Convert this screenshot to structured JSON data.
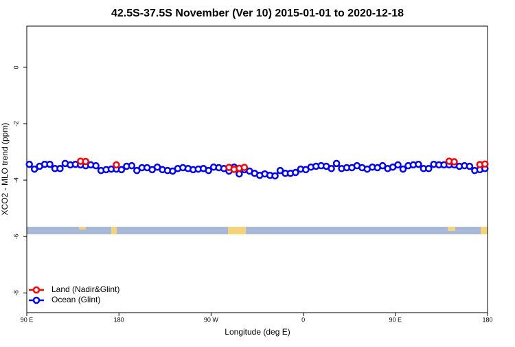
{
  "chart_data": {
    "type": "line",
    "title": "42.5S-37.5S November (Ver 10)   2015-01-01 to 2020-12-18",
    "x_label": "Longitude (deg E)",
    "y_label": "XCO2 - MLO trend (ppm)",
    "xlim": [
      90,
      540
    ],
    "ylim": [
      -8.7,
      1.46
    ],
    "xticks": [
      {
        "value": 90,
        "label": "90 E"
      },
      {
        "value": 180,
        "label": "180"
      },
      {
        "value": 270,
        "label": "90 W"
      },
      {
        "value": 360,
        "label": "0"
      },
      {
        "value": 450,
        "label": "90 E"
      },
      {
        "value": 540,
        "label": "180"
      }
    ],
    "yticks": [
      0,
      -2,
      -4,
      -6,
      -8
    ],
    "legend": "bottom-left",
    "x": [
      92.5,
      97.5,
      102.5,
      107.5,
      112.5,
      117.5,
      122.5,
      127.5,
      132.5,
      137.5,
      142.5,
      147.5,
      152.5,
      157.5,
      162.5,
      167.5,
      172.5,
      177.5,
      182.5,
      187.5,
      192.5,
      197.5,
      202.5,
      207.5,
      212.5,
      217.5,
      222.5,
      227.5,
      232.5,
      237.5,
      242.5,
      247.5,
      252.5,
      257.5,
      262.5,
      267.5,
      272.5,
      277.5,
      282.5,
      287.5,
      292.5,
      297.5,
      302.5,
      307.5,
      312.5,
      317.5,
      322.5,
      327.5,
      332.5,
      337.5,
      342.5,
      347.5,
      352.5,
      357.5,
      362.5,
      367.5,
      372.5,
      377.5,
      382.5,
      387.5,
      392.5,
      397.5,
      402.5,
      407.5,
      412.5,
      417.5,
      422.5,
      427.5,
      432.5,
      437.5,
      442.5,
      447.5,
      452.5,
      457.5,
      462.5,
      467.5,
      472.5,
      477.5,
      482.5,
      487.5,
      492.5,
      497.5,
      502.5,
      507.5,
      512.5,
      517.5,
      522.5,
      527.5,
      532.5,
      537.5
    ],
    "series": [
      {
        "name": "Land (Nadir&Glint)",
        "color": "#ff0000",
        "values": [
          null,
          null,
          null,
          null,
          null,
          null,
          null,
          null,
          null,
          null,
          -3.33,
          -3.34,
          null,
          null,
          null,
          null,
          null,
          -3.46,
          null,
          null,
          null,
          null,
          null,
          null,
          null,
          null,
          null,
          null,
          null,
          null,
          null,
          null,
          null,
          null,
          null,
          null,
          null,
          null,
          null,
          -3.55,
          -3.62,
          -3.58,
          -3.55,
          null,
          null,
          null,
          null,
          null,
          null,
          null,
          null,
          null,
          null,
          null,
          null,
          null,
          null,
          null,
          null,
          null,
          null,
          null,
          null,
          null,
          null,
          null,
          null,
          null,
          null,
          null,
          null,
          null,
          null,
          null,
          null,
          null,
          null,
          null,
          null,
          null,
          null,
          null,
          -3.33,
          -3.35,
          null,
          null,
          null,
          null,
          -3.45,
          -3.43
        ]
      },
      {
        "name": "Ocean (Glint)",
        "color": "#0000ff",
        "values": [
          -3.44,
          -3.61,
          -3.51,
          -3.44,
          -3.44,
          -3.59,
          -3.59,
          -3.41,
          -3.46,
          -3.44,
          -3.46,
          -3.49,
          -3.46,
          -3.49,
          -3.66,
          -3.63,
          -3.61,
          -3.61,
          -3.63,
          -3.51,
          -3.49,
          -3.66,
          -3.56,
          -3.56,
          -3.63,
          -3.54,
          -3.63,
          -3.66,
          -3.68,
          -3.59,
          -3.56,
          -3.59,
          -3.63,
          -3.61,
          -3.59,
          -3.66,
          -3.54,
          -3.56,
          -3.59,
          -3.68,
          -3.54,
          -3.78,
          -3.63,
          -3.68,
          -3.76,
          -3.83,
          -3.78,
          -3.83,
          -3.85,
          -3.66,
          -3.76,
          -3.76,
          -3.73,
          -3.61,
          -3.63,
          -3.54,
          -3.51,
          -3.49,
          -3.51,
          -3.59,
          -3.41,
          -3.59,
          -3.56,
          -3.56,
          -3.49,
          -3.56,
          -3.61,
          -3.54,
          -3.56,
          -3.49,
          -3.59,
          -3.54,
          -3.46,
          -3.61,
          -3.49,
          -3.46,
          -3.44,
          -3.59,
          -3.59,
          -3.44,
          -3.46,
          -3.46,
          -3.46,
          -3.46,
          -3.51,
          -3.49,
          -3.51,
          -3.66,
          -3.63,
          -3.59
        ]
      }
    ]
  }
}
